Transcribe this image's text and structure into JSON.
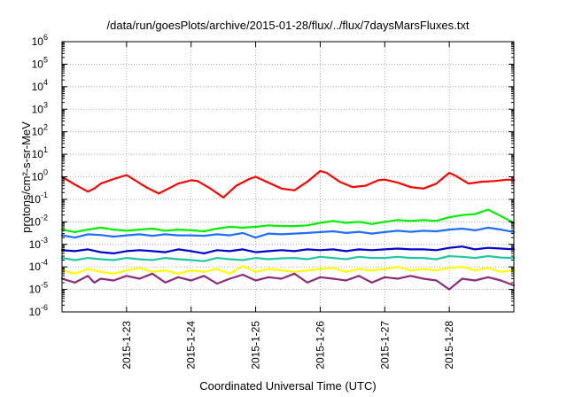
{
  "chart_data": {
    "type": "line",
    "title": "/data/run/goesPlots/archive/2015-01-28/flux/../flux/7daysMarsFluxes.txt",
    "xlabel": "Coordinated Universal Time (UTC)",
    "ylabel": "protons/cm²-s-sr-MeV",
    "yscale": "log",
    "ylim": [
      1e-06,
      1000000.0
    ],
    "xlim": [
      0,
      7
    ],
    "grid": true,
    "x_ticks": [
      {
        "label": "2015-1-23",
        "value": 1
      },
      {
        "label": "2015-1-24",
        "value": 2
      },
      {
        "label": "2015-1-25",
        "value": 3
      },
      {
        "label": "2015-1-26",
        "value": 4
      },
      {
        "label": "2015-1-27",
        "value": 5
      },
      {
        "label": "2015-1-28",
        "value": 6
      }
    ],
    "y_ticks": [
      {
        "exp": -6,
        "label": "10",
        "sup": "-6"
      },
      {
        "exp": -5,
        "label": "10",
        "sup": "-5"
      },
      {
        "exp": -4,
        "label": "10",
        "sup": "-4"
      },
      {
        "exp": -3,
        "label": "10",
        "sup": "-3"
      },
      {
        "exp": -2,
        "label": "10",
        "sup": "-2"
      },
      {
        "exp": -1,
        "label": "10",
        "sup": "-1"
      },
      {
        "exp": 0,
        "label": "10",
        "sup": "0"
      },
      {
        "exp": 1,
        "label": "10",
        "sup": "1"
      },
      {
        "exp": 2,
        "label": "10",
        "sup": "2"
      },
      {
        "exp": 3,
        "label": "10",
        "sup": "3"
      },
      {
        "exp": 4,
        "label": "10",
        "sup": "4"
      },
      {
        "exp": 5,
        "label": "10",
        "sup": "5"
      },
      {
        "exp": 6,
        "label": "10",
        "sup": "6"
      }
    ],
    "series": [
      {
        "color": "#ff0000",
        "x": [
          0,
          0.2,
          0.4,
          0.5,
          0.6,
          0.8,
          1.0,
          1.1,
          1.3,
          1.5,
          1.8,
          2.0,
          2.1,
          2.3,
          2.5,
          2.7,
          2.9,
          3.0,
          3.2,
          3.4,
          3.6,
          3.8,
          4.0,
          4.1,
          4.3,
          4.5,
          4.7,
          4.9,
          5.0,
          5.2,
          5.4,
          5.6,
          5.8,
          6.0,
          6.1,
          6.3,
          6.5,
          6.7,
          6.9,
          7.0
        ],
        "y": [
          1.0,
          0.45,
          0.22,
          0.3,
          0.5,
          0.8,
          1.2,
          0.8,
          0.35,
          0.18,
          0.5,
          0.7,
          0.65,
          0.3,
          0.12,
          0.4,
          0.8,
          1.0,
          0.55,
          0.3,
          0.25,
          0.6,
          1.8,
          1.5,
          0.6,
          0.35,
          0.4,
          0.7,
          0.75,
          0.55,
          0.35,
          0.3,
          0.5,
          1.5,
          1.1,
          0.5,
          0.6,
          0.65,
          0.75,
          0.7
        ]
      },
      {
        "color": "#00ee00",
        "x": [
          0,
          0.2,
          0.4,
          0.6,
          0.8,
          1.0,
          1.2,
          1.4,
          1.6,
          1.8,
          2.0,
          2.2,
          2.4,
          2.6,
          2.8,
          3.0,
          3.2,
          3.4,
          3.6,
          3.8,
          4.0,
          4.2,
          4.4,
          4.6,
          4.8,
          5.0,
          5.2,
          5.4,
          5.6,
          5.8,
          6.0,
          6.2,
          6.4,
          6.6,
          6.8,
          7.0
        ],
        "y": [
          0.0045,
          0.0035,
          0.0045,
          0.0055,
          0.0045,
          0.004,
          0.0045,
          0.005,
          0.004,
          0.0045,
          0.0042,
          0.0038,
          0.005,
          0.006,
          0.0055,
          0.006,
          0.007,
          0.0065,
          0.0065,
          0.007,
          0.009,
          0.011,
          0.009,
          0.01,
          0.008,
          0.01,
          0.012,
          0.011,
          0.012,
          0.011,
          0.016,
          0.02,
          0.022,
          0.035,
          0.018,
          0.009
        ]
      },
      {
        "color": "#1e6fff",
        "x": [
          0,
          0.2,
          0.4,
          0.6,
          0.8,
          1.0,
          1.2,
          1.4,
          1.6,
          1.8,
          2.0,
          2.2,
          2.4,
          2.6,
          2.8,
          3.0,
          3.2,
          3.4,
          3.6,
          3.8,
          4.0,
          4.2,
          4.4,
          4.6,
          4.8,
          5.0,
          5.2,
          5.4,
          5.6,
          5.8,
          6.0,
          6.2,
          6.4,
          6.6,
          6.8,
          7.0
        ],
        "y": [
          0.0025,
          0.002,
          0.0028,
          0.0026,
          0.0022,
          0.0025,
          0.0028,
          0.0024,
          0.0028,
          0.0025,
          0.0025,
          0.0024,
          0.0028,
          0.0025,
          0.0032,
          0.002,
          0.003,
          0.0028,
          0.003,
          0.0032,
          0.0035,
          0.0038,
          0.0032,
          0.0036,
          0.003,
          0.0035,
          0.004,
          0.0036,
          0.004,
          0.0038,
          0.0045,
          0.005,
          0.0042,
          0.0055,
          0.0045,
          0.0035
        ]
      },
      {
        "color": "#0000cc",
        "x": [
          0,
          0.2,
          0.4,
          0.6,
          0.8,
          1.0,
          1.2,
          1.4,
          1.6,
          1.8,
          2.0,
          2.2,
          2.4,
          2.6,
          2.8,
          3.0,
          3.2,
          3.4,
          3.6,
          3.8,
          4.0,
          4.2,
          4.4,
          4.6,
          4.8,
          5.0,
          5.2,
          5.4,
          5.6,
          5.8,
          6.0,
          6.2,
          6.4,
          6.6,
          6.8,
          7.0
        ],
        "y": [
          0.00055,
          0.0005,
          0.0006,
          0.00045,
          0.0004,
          0.0005,
          0.00055,
          0.0005,
          0.00045,
          0.0006,
          0.0005,
          0.0004,
          0.00055,
          0.0005,
          0.0006,
          0.00045,
          0.0005,
          0.00055,
          0.0005,
          0.0006,
          0.00055,
          0.0006,
          0.0005,
          0.0006,
          0.00055,
          0.0006,
          0.00065,
          0.0006,
          0.0006,
          0.00055,
          0.0007,
          0.0008,
          0.0006,
          0.0007,
          0.00065,
          0.0006
        ]
      },
      {
        "color": "#22c7a0",
        "x": [
          0,
          0.2,
          0.4,
          0.6,
          0.8,
          1.0,
          1.2,
          1.4,
          1.6,
          1.8,
          2.0,
          2.2,
          2.4,
          2.6,
          2.8,
          3.0,
          3.2,
          3.4,
          3.6,
          3.8,
          4.0,
          4.2,
          4.4,
          4.6,
          4.8,
          5.0,
          5.2,
          5.4,
          5.6,
          5.8,
          6.0,
          6.2,
          6.4,
          6.6,
          6.8,
          7.0
        ],
        "y": [
          0.00025,
          0.0002,
          0.00025,
          0.00022,
          0.0002,
          0.00025,
          0.00022,
          0.0002,
          0.00025,
          0.00022,
          0.0002,
          0.00018,
          0.00025,
          0.00022,
          0.0002,
          0.00025,
          0.00022,
          0.00024,
          0.00025,
          0.00022,
          0.00028,
          0.00025,
          0.00022,
          0.00028,
          0.00025,
          0.00025,
          0.00028,
          0.00025,
          0.00025,
          0.00022,
          0.0003,
          0.00028,
          0.00025,
          0.0003,
          0.00026,
          0.00025
        ]
      },
      {
        "color": "#ffff00",
        "x": [
          0,
          0.2,
          0.4,
          0.6,
          0.8,
          1.0,
          1.2,
          1.4,
          1.6,
          1.8,
          2.0,
          2.2,
          2.4,
          2.6,
          2.8,
          3.0,
          3.2,
          3.4,
          3.6,
          3.8,
          4.0,
          4.2,
          4.4,
          4.6,
          4.8,
          5.0,
          5.2,
          5.4,
          5.6,
          5.8,
          6.0,
          6.2,
          6.4,
          6.6,
          6.8,
          7.0
        ],
        "y": [
          7e-05,
          5e-05,
          8e-05,
          6e-05,
          5e-05,
          7e-05,
          9e-05,
          6e-05,
          7e-05,
          5e-05,
          7e-05,
          6e-05,
          8e-05,
          5e-05,
          0.00011,
          6e-05,
          8e-05,
          7e-05,
          6e-05,
          7e-05,
          8e-05,
          9e-05,
          6e-05,
          8e-05,
          7e-05,
          8e-05,
          0.0001,
          7e-05,
          8e-05,
          7e-05,
          9e-05,
          0.0001,
          7e-05,
          9e-05,
          6e-05,
          7e-05
        ]
      },
      {
        "color": "#8b2c7a",
        "x": [
          0,
          0.2,
          0.4,
          0.5,
          0.6,
          0.8,
          1.0,
          1.2,
          1.4,
          1.6,
          1.8,
          2.0,
          2.2,
          2.4,
          2.6,
          2.8,
          3.0,
          3.2,
          3.4,
          3.6,
          3.8,
          4.0,
          4.2,
          4.4,
          4.6,
          4.8,
          5.0,
          5.2,
          5.4,
          5.6,
          5.8,
          6.0,
          6.2,
          6.4,
          6.6,
          6.8,
          7.0
        ],
        "y": [
          3e-05,
          2e-05,
          4e-05,
          2e-05,
          3e-05,
          2.5e-05,
          4e-05,
          3e-05,
          5e-05,
          2e-05,
          3.5e-05,
          2.5e-05,
          4e-05,
          1.8e-05,
          3e-05,
          4.5e-05,
          2.5e-05,
          3.5e-05,
          3e-05,
          5e-05,
          2e-05,
          3.5e-05,
          3e-05,
          2.5e-05,
          4e-05,
          2e-05,
          3.5e-05,
          3e-05,
          4e-05,
          3e-05,
          2.5e-05,
          1e-05,
          3e-05,
          2.5e-05,
          3.5e-05,
          2.5e-05,
          1.5e-05
        ]
      }
    ]
  }
}
